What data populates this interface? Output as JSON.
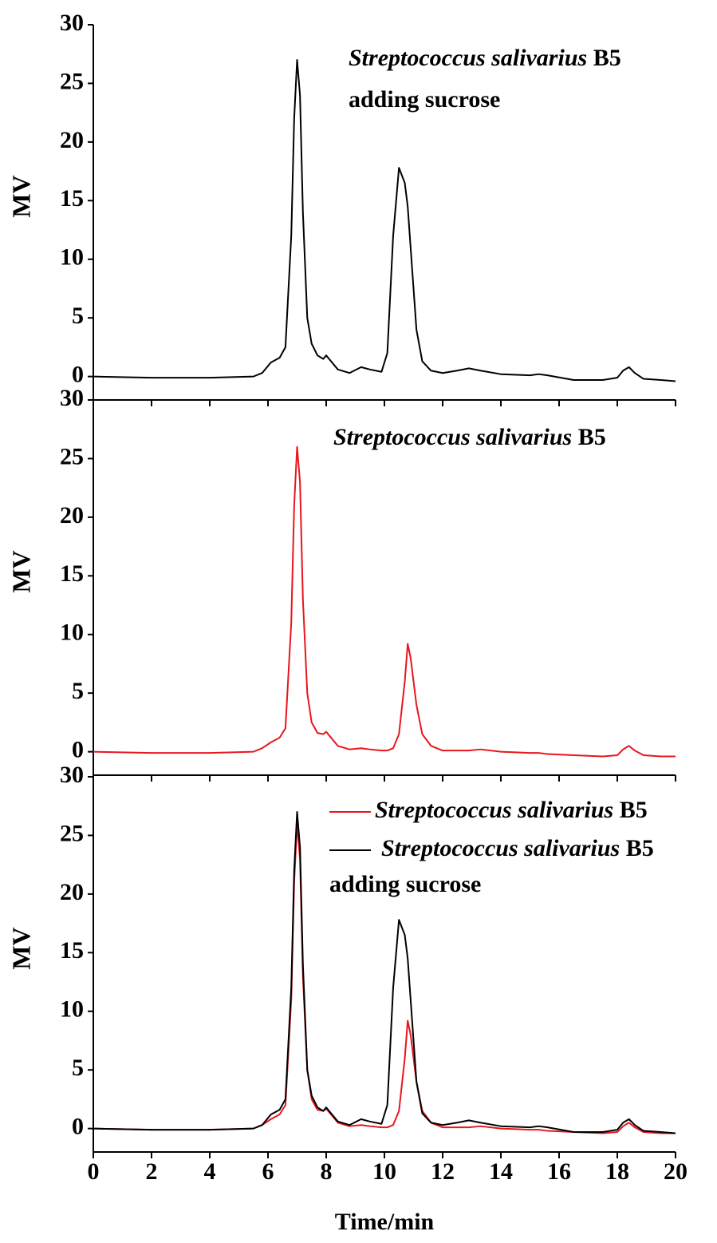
{
  "chart_data": [
    {
      "type": "line",
      "ylabel": "MV",
      "annotation": "Streptococcus salivarius B5 adding sucrose",
      "xlim": [
        0,
        20
      ],
      "xticks": [
        0,
        2,
        4,
        6,
        8,
        10,
        12,
        14,
        16,
        18,
        20
      ],
      "ylim": [
        -2,
        30
      ],
      "yticks": [
        0,
        5,
        10,
        15,
        20,
        25,
        30
      ],
      "x": [
        0,
        2,
        4,
        5.5,
        5.8,
        6.1,
        6.4,
        6.6,
        6.8,
        6.9,
        7.0,
        7.1,
        7.2,
        7.35,
        7.5,
        7.7,
        7.9,
        8.0,
        8.1,
        8.4,
        8.8,
        9.2,
        9.5,
        9.9,
        10.1,
        10.3,
        10.5,
        10.7,
        10.8,
        10.9,
        11.1,
        11.3,
        11.6,
        12.0,
        12.5,
        12.9,
        13.3,
        14.0,
        15.0,
        15.3,
        15.6,
        16.5,
        17.5,
        18.0,
        18.2,
        18.4,
        18.6,
        18.9,
        19.5,
        20
      ],
      "series": [
        {
          "color": "#000000",
          "values": [
            0,
            -0.1,
            -0.1,
            0,
            0.3,
            1.2,
            1.6,
            2.5,
            12,
            22,
            27,
            24,
            14,
            5,
            2.8,
            1.8,
            1.5,
            1.8,
            1.5,
            0.6,
            0.3,
            0.8,
            0.6,
            0.4,
            2,
            12,
            17.8,
            16.5,
            14.5,
            11,
            4,
            1.3,
            0.5,
            0.3,
            0.5,
            0.7,
            0.5,
            0.2,
            0.1,
            0.2,
            0.1,
            -0.3,
            -0.3,
            -0.1,
            0.5,
            0.8,
            0.3,
            -0.2,
            -0.3,
            -0.4
          ]
        }
      ]
    },
    {
      "type": "line",
      "ylabel": "MV",
      "annotation": "Streptococcus salivarius B5",
      "xlim": [
        0,
        20
      ],
      "xticks": [
        0,
        2,
        4,
        6,
        8,
        10,
        12,
        14,
        16,
        18,
        20
      ],
      "ylim": [
        -2,
        30
      ],
      "yticks": [
        0,
        5,
        10,
        15,
        20,
        25,
        30
      ],
      "x": [
        0,
        2,
        4,
        5.5,
        5.8,
        6.1,
        6.4,
        6.6,
        6.8,
        6.9,
        7.0,
        7.1,
        7.2,
        7.35,
        7.5,
        7.7,
        7.9,
        8.0,
        8.1,
        8.4,
        8.8,
        9.2,
        9.5,
        9.9,
        10.1,
        10.3,
        10.5,
        10.7,
        10.8,
        10.9,
        11.1,
        11.3,
        11.6,
        12.0,
        12.5,
        12.9,
        13.3,
        14.0,
        15.0,
        15.3,
        15.6,
        16.5,
        17.5,
        18.0,
        18.2,
        18.4,
        18.6,
        18.9,
        19.5,
        20
      ],
      "series": [
        {
          "color": "#e8161d",
          "values": [
            0,
            -0.1,
            -0.1,
            0,
            0.3,
            0.8,
            1.2,
            2,
            11,
            21,
            26,
            23,
            13,
            5,
            2.5,
            1.6,
            1.5,
            1.7,
            1.4,
            0.5,
            0.2,
            0.3,
            0.2,
            0.1,
            0.1,
            0.3,
            1.5,
            6,
            9.2,
            8,
            4,
            1.5,
            0.5,
            0.1,
            0.1,
            0.1,
            0.2,
            0,
            -0.1,
            -0.1,
            -0.2,
            -0.3,
            -0.4,
            -0.3,
            0.2,
            0.5,
            0.1,
            -0.3,
            -0.4,
            -0.4
          ]
        }
      ]
    },
    {
      "type": "line",
      "ylabel": "MV",
      "xlabel": "Time/min",
      "xlim": [
        0,
        20
      ],
      "xticks": [
        0,
        2,
        4,
        6,
        8,
        10,
        12,
        14,
        16,
        18,
        20
      ],
      "ylim": [
        -2,
        30
      ],
      "yticks": [
        0,
        5,
        10,
        15,
        20,
        25,
        30
      ],
      "x": [
        0,
        2,
        4,
        5.5,
        5.8,
        6.1,
        6.4,
        6.6,
        6.8,
        6.9,
        7.0,
        7.1,
        7.2,
        7.35,
        7.5,
        7.7,
        7.9,
        8.0,
        8.1,
        8.4,
        8.8,
        9.2,
        9.5,
        9.9,
        10.1,
        10.3,
        10.5,
        10.7,
        10.8,
        10.9,
        11.1,
        11.3,
        11.6,
        12.0,
        12.5,
        12.9,
        13.3,
        14.0,
        15.0,
        15.3,
        15.6,
        16.5,
        17.5,
        18.0,
        18.2,
        18.4,
        18.6,
        18.9,
        19.5,
        20
      ],
      "series": [
        {
          "name": "Streptococcus salivarius B5",
          "color": "#e8161d",
          "values": [
            0,
            -0.1,
            -0.1,
            0,
            0.3,
            0.8,
            1.2,
            2,
            11,
            21,
            26,
            23,
            13,
            5,
            2.5,
            1.6,
            1.5,
            1.7,
            1.4,
            0.5,
            0.2,
            0.3,
            0.2,
            0.1,
            0.1,
            0.3,
            1.5,
            6,
            9.2,
            8,
            4,
            1.5,
            0.5,
            0.1,
            0.1,
            0.1,
            0.2,
            0,
            -0.1,
            -0.1,
            -0.2,
            -0.3,
            -0.4,
            -0.3,
            0.2,
            0.5,
            0.1,
            -0.3,
            -0.4,
            -0.4
          ]
        },
        {
          "name": "Streptococcus salivarius B5 adding sucrose",
          "color": "#000000",
          "values": [
            0,
            -0.1,
            -0.1,
            0,
            0.3,
            1.2,
            1.6,
            2.5,
            12,
            22,
            27,
            24,
            14,
            5,
            2.8,
            1.8,
            1.5,
            1.8,
            1.5,
            0.6,
            0.3,
            0.8,
            0.6,
            0.4,
            2,
            12,
            17.8,
            16.5,
            14.5,
            11,
            4,
            1.3,
            0.5,
            0.3,
            0.5,
            0.7,
            0.5,
            0.2,
            0.1,
            0.2,
            0.1,
            -0.3,
            -0.3,
            -0.1,
            0.5,
            0.8,
            0.3,
            -0.2,
            -0.3,
            -0.4
          ]
        }
      ]
    }
  ]
}
